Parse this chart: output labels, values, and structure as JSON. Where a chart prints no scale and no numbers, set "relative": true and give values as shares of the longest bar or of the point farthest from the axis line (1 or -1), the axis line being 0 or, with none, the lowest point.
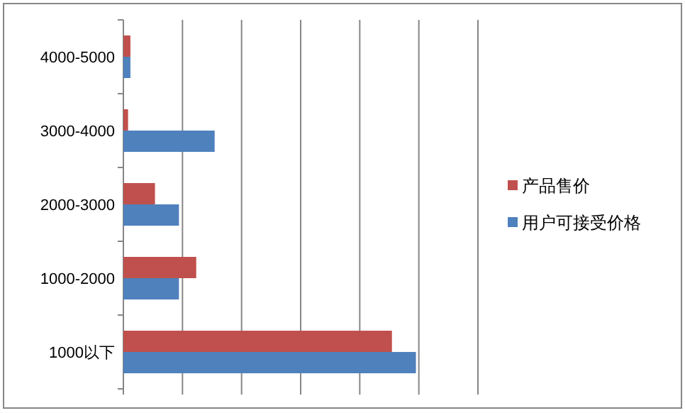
{
  "chart_data": {
    "type": "bar",
    "orientation": "horizontal",
    "relative": true,
    "grid": "x",
    "legend": "right",
    "categories": [
      "4000-5000",
      "3000-4000",
      "2000-3000",
      "1000-2000",
      "1000以下"
    ],
    "series": [
      {
        "name": "产品售价",
        "color": "#c0504d",
        "values": [
          0.024,
          0.016,
          0.108,
          0.249,
          0.918
        ]
      },
      {
        "name": "用户可接受价格",
        "color": "#4f81bd",
        "values": [
          0.024,
          0.312,
          0.19,
          0.19,
          1
        ]
      }
    ]
  }
}
